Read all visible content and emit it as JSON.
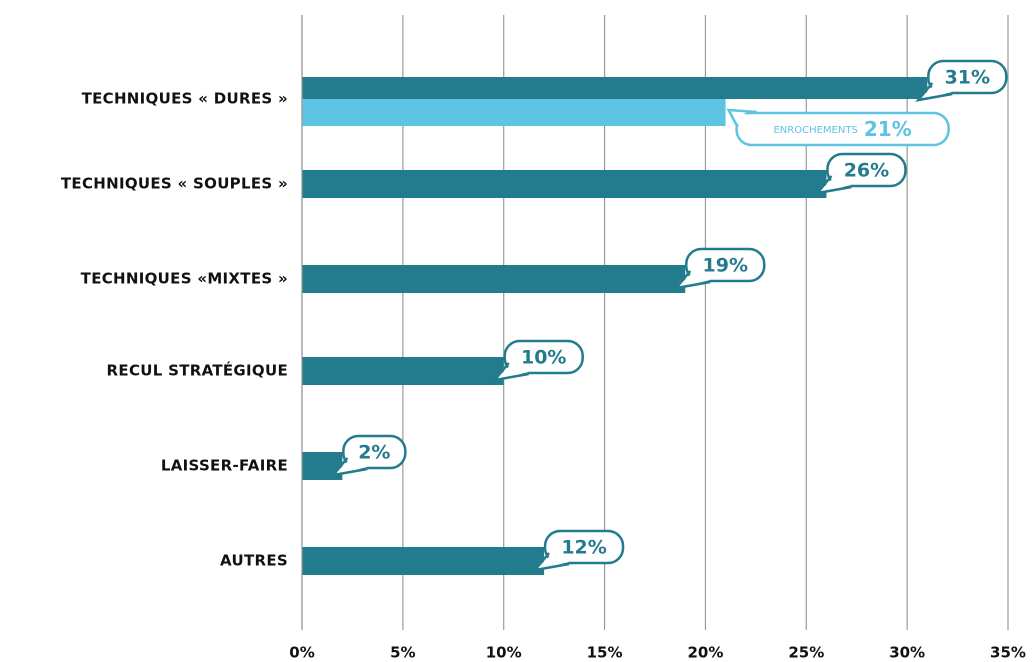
{
  "chart_data": {
    "type": "bar",
    "orientation": "horizontal",
    "categories": [
      "TECHNIQUES « DURES »",
      "TECHNIQUES « SOUPLES »",
      "TECHNIQUES «MIXTES »",
      "RECUL STRATÉGIQUE",
      "LAISSER-FAIRE",
      "AUTRES"
    ],
    "series": [
      {
        "color": "#237b8e",
        "values": [
          31,
          26,
          19,
          10,
          2,
          12
        ],
        "value_labels": [
          "31%",
          "26%",
          "19%",
          "10%",
          "2%",
          "12%"
        ]
      },
      {
        "name": "ENROCHEMENTS",
        "color": "#5ec4e4",
        "values": [
          21,
          null,
          null,
          null,
          null,
          null
        ],
        "value_labels": [
          "21%",
          null,
          null,
          null,
          null,
          null
        ]
      }
    ],
    "xlim": [
      0,
      35
    ],
    "xticks": [
      {
        "value": 0,
        "label": "0%"
      },
      {
        "value": 5,
        "label": "5%"
      },
      {
        "value": 10,
        "label": "10%"
      },
      {
        "value": 15,
        "label": "15%"
      },
      {
        "value": 20,
        "label": "20%"
      },
      {
        "value": 25,
        "label": "25%"
      },
      {
        "value": 30,
        "label": "30%"
      },
      {
        "value": 35,
        "label": "35%"
      }
    ],
    "grid": true
  }
}
